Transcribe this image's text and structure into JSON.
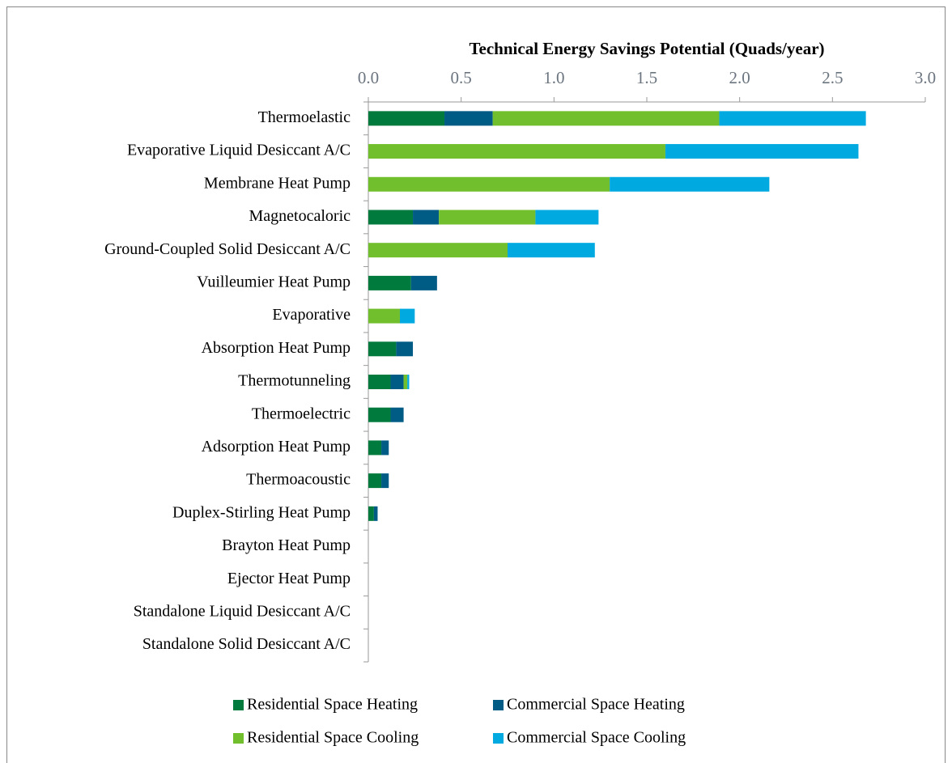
{
  "chart_data": {
    "type": "hbar-stacked",
    "x_title": "Technical Energy Savings Potential (Quads/year)",
    "categories": [
      "Thermoelastic",
      "Evaporative Liquid Desiccant A/C",
      "Membrane Heat Pump",
      "Magnetocaloric",
      "Ground-Coupled Solid Desiccant A/C",
      "Vuilleumier Heat Pump",
      "Evaporative",
      "Absorption Heat Pump",
      "Thermotunneling",
      "Thermoelectric",
      "Adsorption Heat Pump",
      "Thermoacoustic",
      "Duplex-Stirling Heat Pump",
      "Brayton Heat Pump",
      "Ejector Heat Pump",
      "Standalone Liquid Desiccant A/C",
      "Standalone Solid Desiccant A/C"
    ],
    "series": [
      {
        "name": "Residential Space Heating",
        "color": "#007a3d",
        "values": [
          0.41,
          0,
          0,
          0.24,
          0,
          0.23,
          0,
          0.15,
          0.12,
          0.12,
          0.07,
          0.07,
          0.03,
          0,
          0,
          0,
          0
        ]
      },
      {
        "name": "Commercial Space Heating",
        "color": "#005b85",
        "values": [
          0.26,
          0,
          0,
          0.14,
          0,
          0.14,
          0,
          0.09,
          0.07,
          0.07,
          0.04,
          0.04,
          0.02,
          0,
          0,
          0,
          0
        ]
      },
      {
        "name": "Residential Space Cooling",
        "color": "#72bf2d",
        "values": [
          1.22,
          1.6,
          1.3,
          0.52,
          0.75,
          0,
          0.17,
          0,
          0.02,
          0,
          0,
          0,
          0,
          0,
          0,
          0,
          0
        ]
      },
      {
        "name": "Commercial Space Cooling",
        "color": "#00a9e0",
        "values": [
          0.79,
          1.04,
          0.86,
          0.34,
          0.47,
          0,
          0.08,
          0,
          0.01,
          0,
          0,
          0,
          0,
          0,
          0,
          0,
          0
        ]
      }
    ],
    "xlim": [
      0,
      3
    ],
    "xticks": [
      {
        "value": 0,
        "label": "0.0"
      },
      0.5,
      {
        "value": 1,
        "label": "1.0"
      },
      1.5,
      {
        "value": 2,
        "label": "2.0"
      },
      2.5,
      {
        "value": 3,
        "label": "3.0"
      }
    ]
  }
}
